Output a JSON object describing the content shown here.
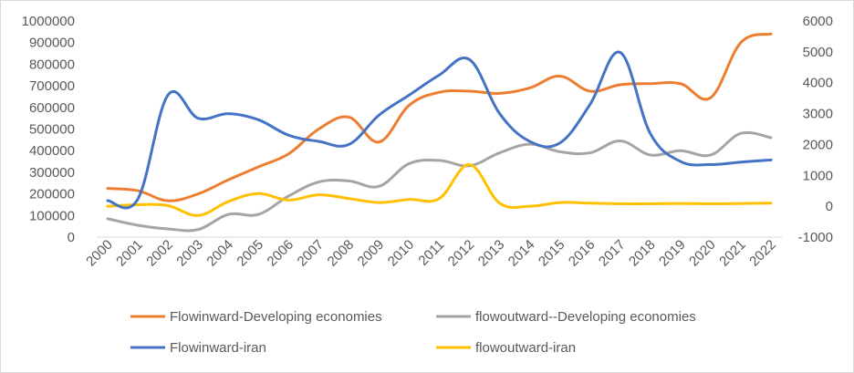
{
  "chart_data": {
    "type": "line",
    "title": "",
    "categories": [
      "2000",
      "2001",
      "2002",
      "2003",
      "2004",
      "2005",
      "2006",
      "2007",
      "2008",
      "2009",
      "2010",
      "2011",
      "2012",
      "2013",
      "2014",
      "2015",
      "2016",
      "2017",
      "2018",
      "2019",
      "2020",
      "2021",
      "2022"
    ],
    "left_axis": {
      "ylim": [
        0,
        1000000
      ],
      "ticks": [
        "0",
        "100000",
        "200000",
        "300000",
        "400000",
        "500000",
        "600000",
        "700000",
        "800000",
        "900000",
        "1000000"
      ]
    },
    "right_axis": {
      "ylim": [
        -1000,
        6000
      ],
      "ticks": [
        "-1000",
        "0",
        "1000",
        "2000",
        "3000",
        "4000",
        "5000",
        "6000"
      ]
    },
    "grid": false,
    "legend_position": "bottom",
    "series": [
      {
        "name": "Flowinward-Developing economies",
        "axis": "left",
        "color": "#ED7D31",
        "values": [
          225000,
          215000,
          168000,
          200000,
          265000,
          325000,
          385000,
          500000,
          555000,
          440000,
          610000,
          670000,
          675000,
          665000,
          690000,
          745000,
          675000,
          705000,
          710000,
          710000,
          645000,
          900000,
          940000
        ]
      },
      {
        "name": "flowoutward--Developing economies",
        "axis": "left",
        "color": "#A5A5A5",
        "values": [
          85000,
          55000,
          38000,
          35000,
          105000,
          105000,
          190000,
          255000,
          260000,
          235000,
          340000,
          355000,
          330000,
          390000,
          430000,
          395000,
          390000,
          445000,
          380000,
          400000,
          380000,
          480000,
          460000
        ]
      },
      {
        "name": "Flowinward-iran",
        "axis": "right",
        "color": "#4472C4",
        "values": [
          180,
          230,
          3600,
          2850,
          3000,
          2800,
          2300,
          2100,
          2000,
          2950,
          3600,
          4250,
          4750,
          3000,
          2100,
          2050,
          3300,
          4980,
          2350,
          1450,
          1350,
          1430,
          1500
        ]
      },
      {
        "name": "flowoutward-iran",
        "axis": "right",
        "color": "#FFC000",
        "values": [
          0,
          50,
          20,
          -300,
          150,
          410,
          200,
          370,
          250,
          120,
          220,
          250,
          1350,
          100,
          0,
          120,
          100,
          80,
          80,
          90,
          80,
          90,
          100
        ]
      }
    ]
  }
}
